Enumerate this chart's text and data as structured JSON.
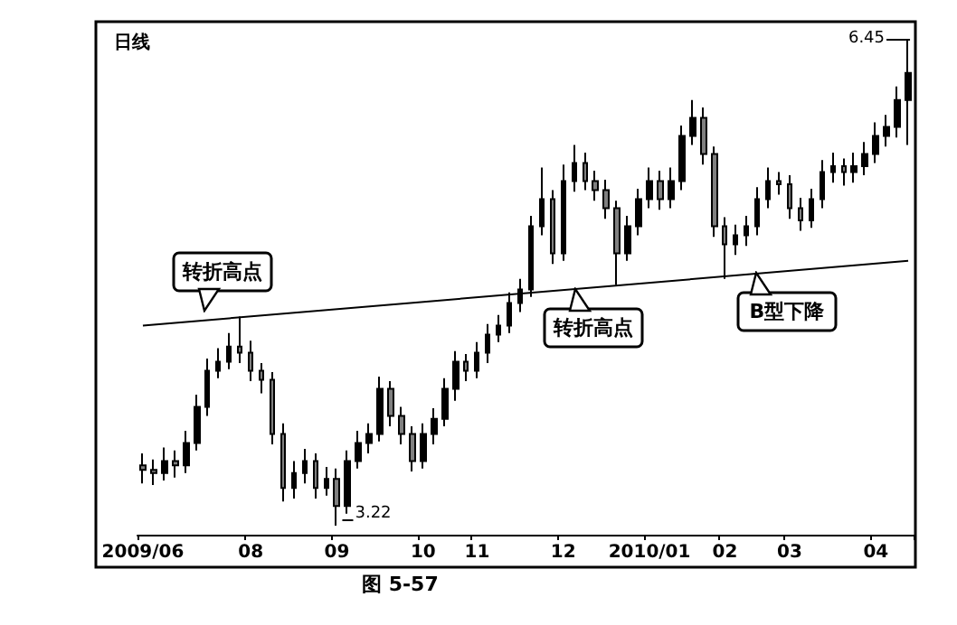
{
  "chart_data": {
    "type": "candlestick",
    "title": "日线",
    "color": "#000000",
    "categories": [
      "2009/06",
      null,
      null,
      null,
      null,
      null,
      null,
      null,
      null,
      null,
      "08",
      null,
      null,
      null,
      null,
      null,
      null,
      null,
      "09",
      null,
      null,
      null,
      null,
      null,
      null,
      null,
      "10",
      null,
      null,
      null,
      null,
      "11",
      null,
      null,
      null,
      null,
      null,
      null,
      null,
      "12",
      null,
      null,
      null,
      null,
      null,
      null,
      null,
      "2010/01",
      null,
      null,
      null,
      null,
      null,
      null,
      "02",
      null,
      null,
      null,
      null,
      null,
      "03",
      null,
      null,
      null,
      null,
      null,
      null,
      null,
      "04",
      null,
      null,
      null
    ],
    "ohlc": [
      [
        3.62,
        3.7,
        3.5,
        3.59
      ],
      [
        3.59,
        3.66,
        3.49,
        3.57
      ],
      [
        3.57,
        3.74,
        3.52,
        3.65
      ],
      [
        3.65,
        3.72,
        3.54,
        3.62
      ],
      [
        3.62,
        3.85,
        3.57,
        3.77
      ],
      [
        3.77,
        4.09,
        3.72,
        4.01
      ],
      [
        4.01,
        4.33,
        3.95,
        4.25
      ],
      [
        4.25,
        4.4,
        4.2,
        4.31
      ],
      [
        4.31,
        4.5,
        4.26,
        4.41
      ],
      [
        4.41,
        4.61,
        4.3,
        4.37
      ],
      [
        4.37,
        4.45,
        4.18,
        4.25
      ],
      [
        4.25,
        4.3,
        4.1,
        4.19
      ],
      [
        4.19,
        4.24,
        3.76,
        3.83
      ],
      [
        3.83,
        3.9,
        3.38,
        3.47
      ],
      [
        3.47,
        3.65,
        3.4,
        3.57
      ],
      [
        3.57,
        3.73,
        3.5,
        3.65
      ],
      [
        3.65,
        3.7,
        3.4,
        3.47
      ],
      [
        3.47,
        3.61,
        3.42,
        3.53
      ],
      [
        3.53,
        3.6,
        3.22,
        3.35
      ],
      [
        3.35,
        3.72,
        3.3,
        3.65
      ],
      [
        3.65,
        3.85,
        3.6,
        3.77
      ],
      [
        3.77,
        3.9,
        3.7,
        3.83
      ],
      [
        3.83,
        4.21,
        3.78,
        4.13
      ],
      [
        4.13,
        4.18,
        3.88,
        3.95
      ],
      [
        3.95,
        4.01,
        3.76,
        3.83
      ],
      [
        3.83,
        3.88,
        3.58,
        3.65
      ],
      [
        3.65,
        3.9,
        3.6,
        3.83
      ],
      [
        3.83,
        4.0,
        3.76,
        3.93
      ],
      [
        3.93,
        4.2,
        3.88,
        4.13
      ],
      [
        4.13,
        4.38,
        4.05,
        4.31
      ],
      [
        4.31,
        4.36,
        4.18,
        4.25
      ],
      [
        4.25,
        4.44,
        4.2,
        4.37
      ],
      [
        4.37,
        4.56,
        4.3,
        4.49
      ],
      [
        4.49,
        4.62,
        4.44,
        4.55
      ],
      [
        4.55,
        4.77,
        4.5,
        4.7
      ],
      [
        4.7,
        4.86,
        4.64,
        4.79
      ],
      [
        4.79,
        5.28,
        4.74,
        5.21
      ],
      [
        5.21,
        5.6,
        5.15,
        5.39
      ],
      [
        5.39,
        5.45,
        4.96,
        5.03
      ],
      [
        5.03,
        5.62,
        4.98,
        5.51
      ],
      [
        5.51,
        5.75,
        5.44,
        5.63
      ],
      [
        5.63,
        5.7,
        5.45,
        5.51
      ],
      [
        5.51,
        5.58,
        5.38,
        5.45
      ],
      [
        5.45,
        5.52,
        5.26,
        5.33
      ],
      [
        5.33,
        5.38,
        4.82,
        5.03
      ],
      [
        5.03,
        5.28,
        4.98,
        5.21
      ],
      [
        5.21,
        5.46,
        5.15,
        5.39
      ],
      [
        5.39,
        5.6,
        5.33,
        5.51
      ],
      [
        5.51,
        5.58,
        5.32,
        5.39
      ],
      [
        5.39,
        5.6,
        5.33,
        5.51
      ],
      [
        5.51,
        5.88,
        5.45,
        5.81
      ],
      [
        5.81,
        6.05,
        5.75,
        5.93
      ],
      [
        5.93,
        6.0,
        5.62,
        5.69
      ],
      [
        5.69,
        5.74,
        5.14,
        5.21
      ],
      [
        5.21,
        5.27,
        4.86,
        5.09
      ],
      [
        5.09,
        5.22,
        5.02,
        5.15
      ],
      [
        5.15,
        5.28,
        5.08,
        5.21
      ],
      [
        5.21,
        5.47,
        5.15,
        5.39
      ],
      [
        5.39,
        5.6,
        5.33,
        5.51
      ],
      [
        5.51,
        5.57,
        5.42,
        5.49
      ],
      [
        5.49,
        5.55,
        5.26,
        5.33
      ],
      [
        5.33,
        5.4,
        5.18,
        5.25
      ],
      [
        5.25,
        5.46,
        5.2,
        5.39
      ],
      [
        5.39,
        5.65,
        5.33,
        5.57
      ],
      [
        5.57,
        5.7,
        5.5,
        5.61
      ],
      [
        5.61,
        5.66,
        5.48,
        5.57
      ],
      [
        5.57,
        5.7,
        5.5,
        5.61
      ],
      [
        5.61,
        5.77,
        5.55,
        5.69
      ],
      [
        5.69,
        5.9,
        5.63,
        5.81
      ],
      [
        5.81,
        5.95,
        5.74,
        5.87
      ],
      [
        5.87,
        6.14,
        5.8,
        6.05
      ],
      [
        6.05,
        6.45,
        5.75,
        6.23
      ]
    ],
    "series": [
      {
        "type": "line",
        "color": "#000000",
        "values": [
          4.55,
          null,
          null,
          null,
          null,
          null,
          null,
          null,
          null,
          null,
          null,
          null,
          null,
          null,
          null,
          null,
          null,
          null,
          null,
          null,
          null,
          null,
          null,
          null,
          null,
          null,
          null,
          null,
          null,
          null,
          null,
          null,
          null,
          null,
          null,
          null,
          null,
          null,
          null,
          null,
          null,
          null,
          null,
          null,
          null,
          null,
          null,
          null,
          null,
          null,
          null,
          null,
          null,
          null,
          null,
          null,
          null,
          null,
          null,
          null,
          null,
          null,
          null,
          null,
          null,
          null,
          null,
          null,
          null,
          null,
          null,
          4.98
        ]
      }
    ],
    "annotations": [
      "转折高点",
      "转折高点",
      "B型下降",
      "图 5-57",
      "3.22",
      "6.45"
    ],
    "grid": false
  }
}
